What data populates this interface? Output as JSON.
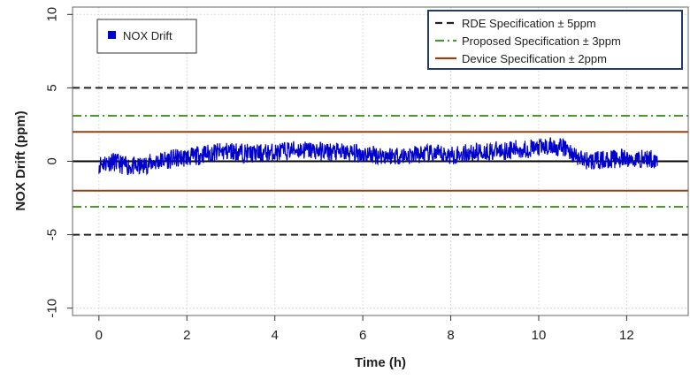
{
  "chart_data": {
    "type": "line",
    "xlabel": "Time (h)",
    "ylabel": "NOX Drift (ppm)",
    "xlim": [
      -0.6,
      13.4
    ],
    "ylim": [
      -10.5,
      10.5
    ],
    "xticks": [
      0,
      2,
      4,
      6,
      8,
      10,
      12
    ],
    "yticks": [
      10,
      5,
      0,
      -5,
      -10
    ],
    "xtick_labels": [
      "0",
      "2",
      "4",
      "6",
      "8",
      "10",
      "12"
    ],
    "ytick_labels": [
      "10",
      "5",
      "0",
      "-5",
      "-10"
    ],
    "grid": true,
    "series": [
      {
        "name": "NOX Drift",
        "color": "#0000cc",
        "style": "noisy",
        "x": [
          0.0,
          0.3,
          0.6,
          0.9,
          1.2,
          1.5,
          1.8,
          2.1,
          2.4,
          2.7,
          3.0,
          3.5,
          4.0,
          4.5,
          5.0,
          5.5,
          6.0,
          6.5,
          7.0,
          7.5,
          8.0,
          8.5,
          9.0,
          9.5,
          10.0,
          10.3,
          10.6,
          10.9,
          11.2,
          11.5,
          11.8,
          12.1,
          12.4,
          12.7
        ],
        "values": [
          -0.2,
          0.0,
          -0.3,
          -0.4,
          -0.1,
          0.1,
          0.2,
          0.3,
          0.5,
          0.6,
          0.7,
          0.5,
          0.6,
          0.8,
          0.7,
          0.6,
          0.5,
          0.4,
          0.4,
          0.5,
          0.4,
          0.6,
          0.7,
          0.8,
          0.9,
          1.0,
          0.9,
          0.2,
          0.0,
          0.1,
          0.2,
          0.1,
          0.2,
          0.1
        ]
      }
    ],
    "reference_lines": [
      {
        "name": "RDE Specification ± 5ppm",
        "values": [
          5,
          -5
        ],
        "color": "#222222",
        "style": "dashed"
      },
      {
        "name": "Proposed Specification ± 3ppm",
        "values": [
          3.1,
          -3.1
        ],
        "color": "#4a9a2a",
        "style": "dashdot"
      },
      {
        "name": "Device Specification ± 2ppm",
        "values": [
          2,
          -2
        ],
        "color": "#8b4513",
        "style": "solid"
      },
      {
        "name": "",
        "values": [
          0
        ],
        "color": "#000000",
        "style": "solid"
      }
    ],
    "legend_series": {
      "placement": "top-left",
      "label": "NOX Drift"
    },
    "legend_specs": {
      "placement": "top-right",
      "items": [
        {
          "label": "RDE Specification ± 5ppm",
          "color": "#222222",
          "style": "dashed"
        },
        {
          "label": "Proposed Specification ± 3ppm",
          "color": "#4a9a2a",
          "style": "dashdot"
        },
        {
          "label": "Device Specification ± 2ppm",
          "color": "#8b4513",
          "style": "solid"
        }
      ]
    }
  }
}
